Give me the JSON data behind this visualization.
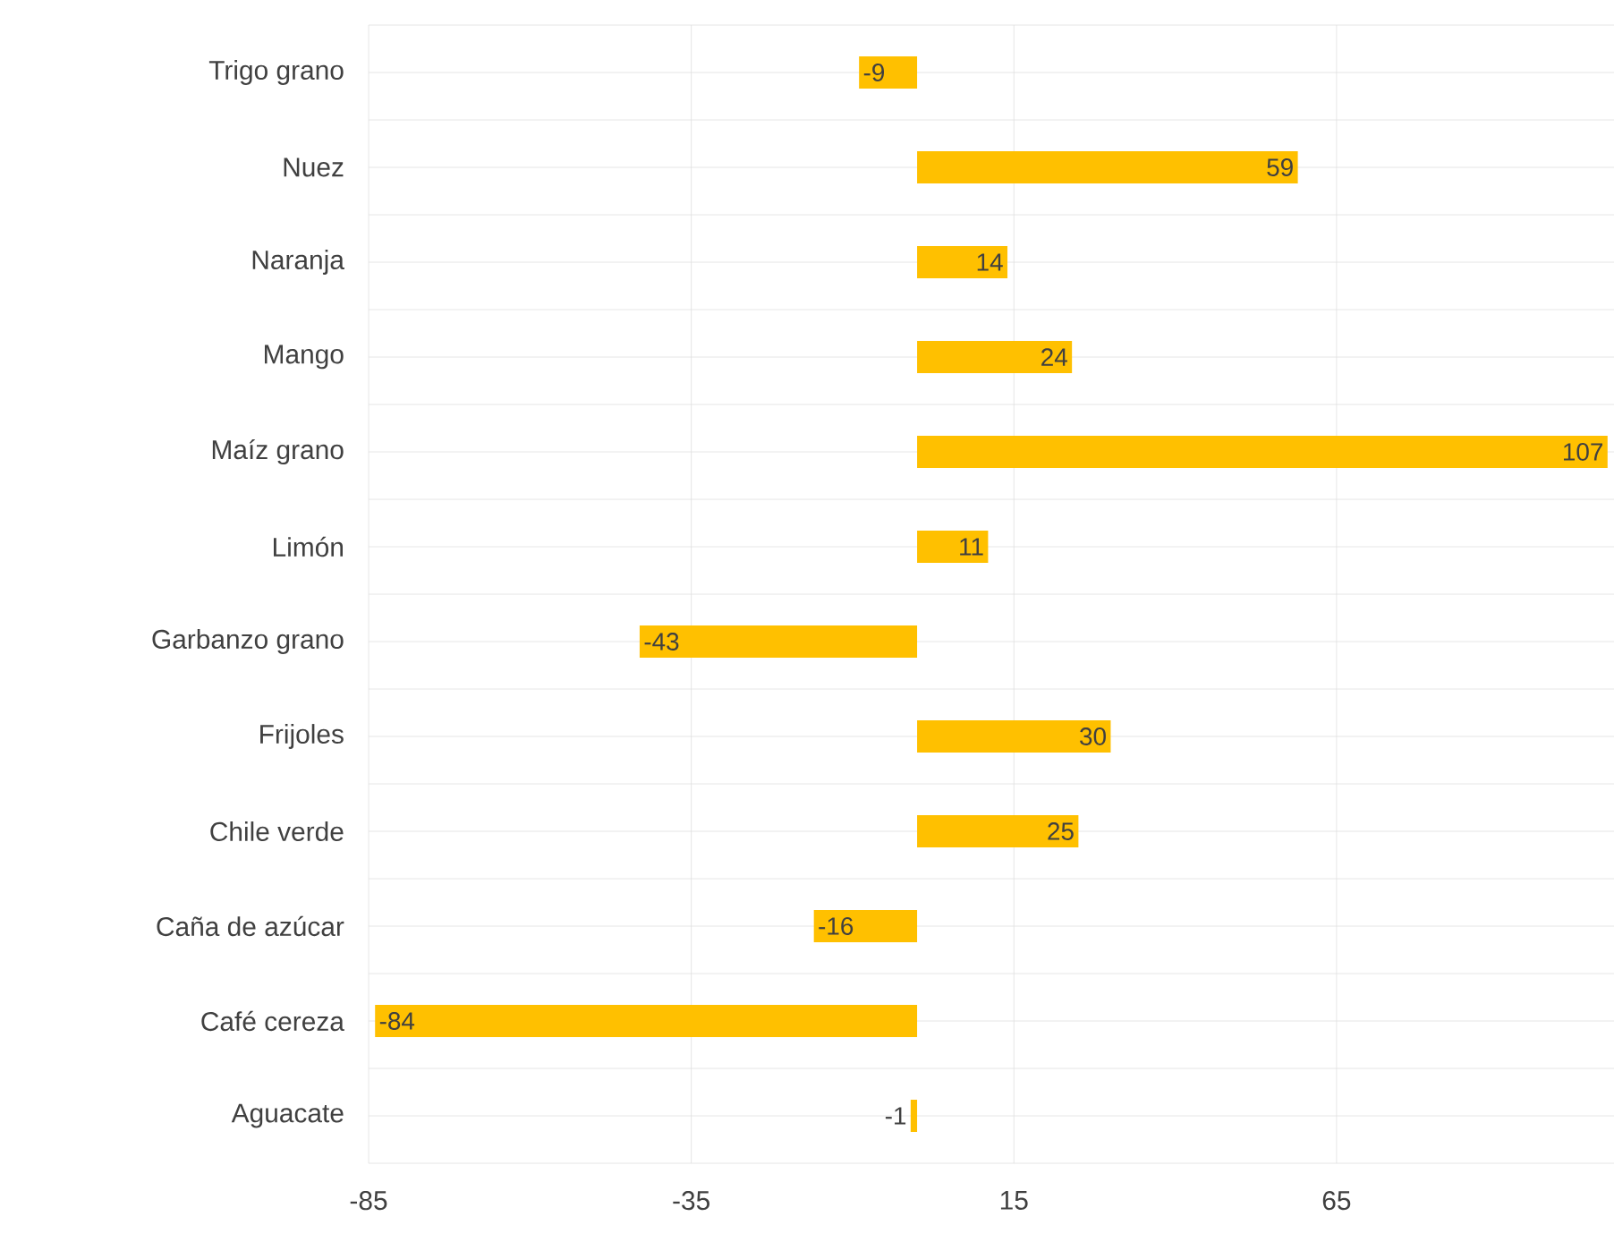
{
  "chart_data": {
    "type": "bar",
    "orientation": "horizontal",
    "categories": [
      "Trigo grano",
      "Nuez",
      "Naranja",
      "Mango",
      "Maíz grano",
      "Limón",
      "Garbanzo grano",
      "Frijoles",
      "Chile verde",
      "Caña de azúcar",
      "Café cereza",
      "Aguacate"
    ],
    "values": [
      -9,
      59,
      14,
      24,
      107,
      11,
      -43,
      30,
      25,
      -16,
      -84,
      -1
    ],
    "color": "#ffc000",
    "data_labels": true,
    "grid": true,
    "xlim": [
      -85,
      108
    ],
    "xticks": [
      -85,
      -35,
      15,
      65
    ]
  }
}
